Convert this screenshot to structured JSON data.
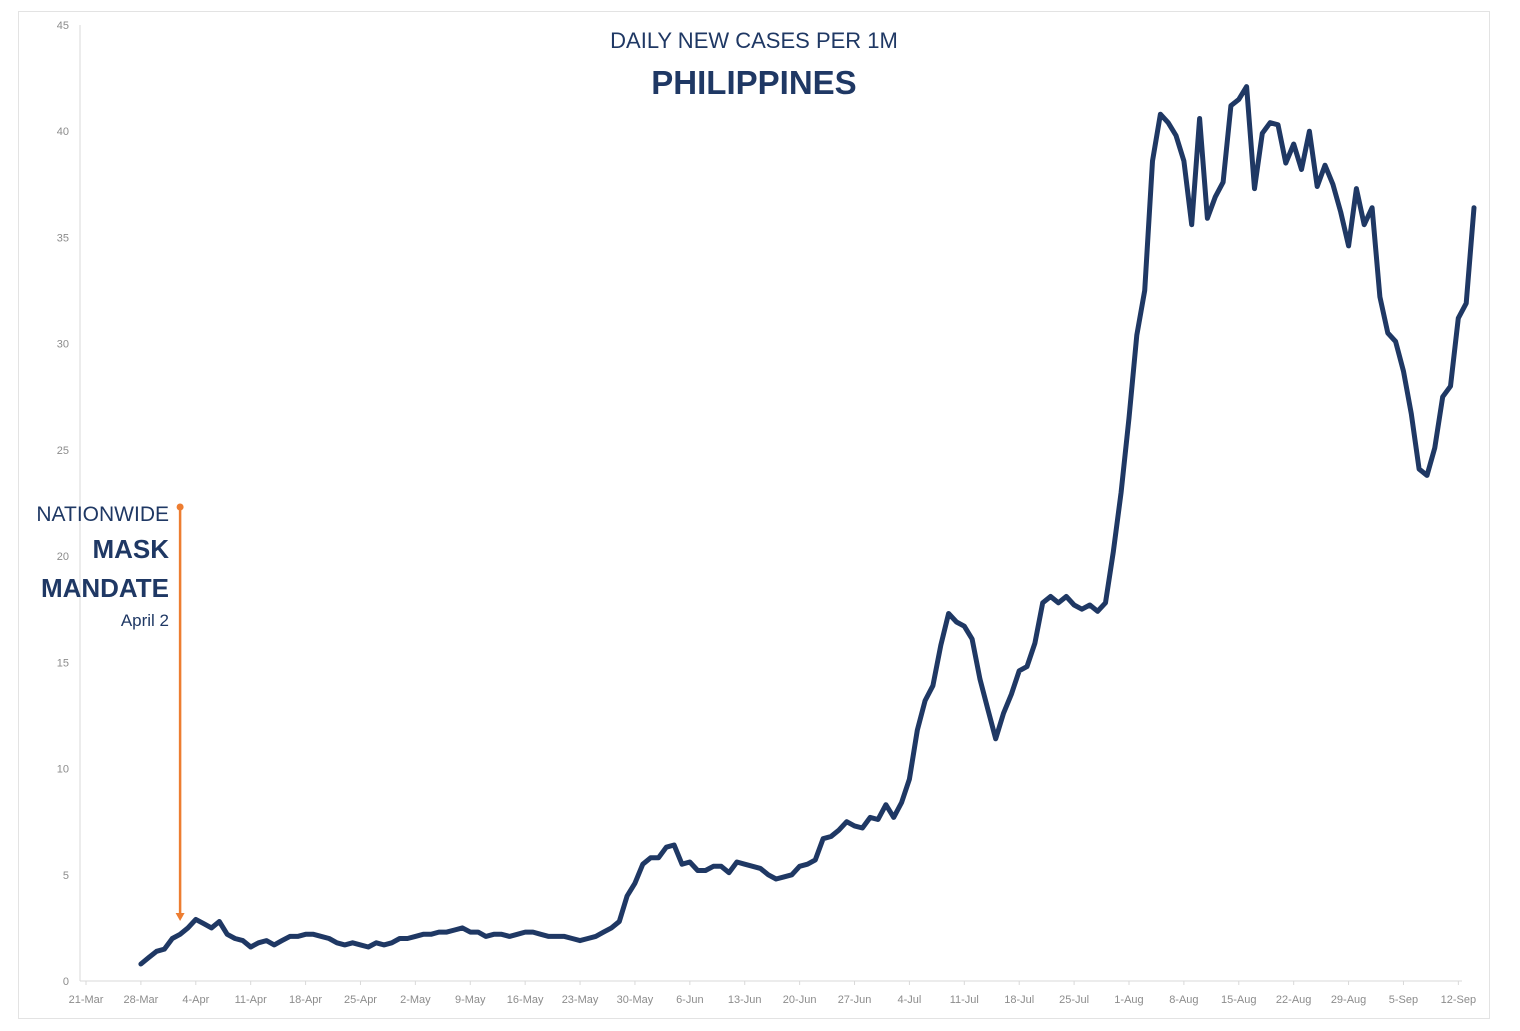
{
  "chart_data": {
    "type": "line",
    "title": "DAILY NEW CASES PER 1M",
    "subtitle": "PHILIPPINES",
    "xlabel": "",
    "ylabel": "",
    "ylim": [
      0,
      45
    ],
    "yticks": [
      0,
      5,
      10,
      15,
      20,
      25,
      30,
      35,
      40,
      45
    ],
    "x_start": "2020-03-21",
    "xtick_labels": [
      "21-Mar",
      "28-Mar",
      "4-Apr",
      "11-Apr",
      "18-Apr",
      "25-Apr",
      "2-May",
      "9-May",
      "16-May",
      "23-May",
      "30-May",
      "6-Jun",
      "13-Jun",
      "20-Jun",
      "27-Jun",
      "4-Jul",
      "11-Jul",
      "18-Jul",
      "25-Jul",
      "1-Aug",
      "8-Aug",
      "15-Aug",
      "22-Aug",
      "29-Aug",
      "5-Sep",
      "12-Sep"
    ],
    "grid": false,
    "line_color": "#1f3864",
    "series": [
      {
        "name": "",
        "x": [
          "28-Mar",
          "29-Mar",
          "30-Mar",
          "31-Mar",
          "1-Apr",
          "2-Apr",
          "3-Apr",
          "4-Apr",
          "5-Apr",
          "6-Apr",
          "7-Apr",
          "8-Apr",
          "9-Apr",
          "10-Apr",
          "11-Apr",
          "12-Apr",
          "13-Apr",
          "14-Apr",
          "15-Apr",
          "16-Apr",
          "17-Apr",
          "18-Apr",
          "19-Apr",
          "20-Apr",
          "21-Apr",
          "22-Apr",
          "23-Apr",
          "24-Apr",
          "25-Apr",
          "26-Apr",
          "27-Apr",
          "28-Apr",
          "29-Apr",
          "30-Apr",
          "1-May",
          "2-May",
          "3-May",
          "4-May",
          "5-May",
          "6-May",
          "7-May",
          "8-May",
          "9-May",
          "10-May",
          "11-May",
          "12-May",
          "13-May",
          "14-May",
          "15-May",
          "16-May",
          "17-May",
          "18-May",
          "19-May",
          "20-May",
          "21-May",
          "22-May",
          "23-May",
          "24-May",
          "25-May",
          "26-May",
          "27-May",
          "28-May",
          "29-May",
          "30-May",
          "31-May",
          "1-Jun",
          "2-Jun",
          "3-Jun",
          "4-Jun",
          "5-Jun",
          "6-Jun",
          "7-Jun",
          "8-Jun",
          "9-Jun",
          "10-Jun",
          "11-Jun",
          "12-Jun",
          "13-Jun",
          "14-Jun",
          "15-Jun",
          "16-Jun",
          "17-Jun",
          "18-Jun",
          "19-Jun",
          "20-Jun",
          "21-Jun",
          "22-Jun",
          "23-Jun",
          "24-Jun",
          "25-Jun",
          "26-Jun",
          "27-Jun",
          "28-Jun",
          "29-Jun",
          "30-Jun",
          "1-Jul",
          "2-Jul",
          "3-Jul",
          "4-Jul",
          "5-Jul",
          "6-Jul",
          "7-Jul",
          "8-Jul",
          "9-Jul",
          "10-Jul",
          "11-Jul",
          "12-Jul",
          "13-Jul",
          "14-Jul",
          "15-Jul",
          "16-Jul",
          "17-Jul",
          "18-Jul",
          "19-Jul",
          "20-Jul",
          "21-Jul",
          "22-Jul",
          "23-Jul",
          "24-Jul",
          "25-Jul",
          "26-Jul",
          "27-Jul",
          "28-Jul",
          "29-Jul",
          "30-Jul",
          "31-Jul",
          "1-Aug",
          "2-Aug",
          "3-Aug",
          "4-Aug",
          "5-Aug",
          "6-Aug",
          "7-Aug",
          "8-Aug",
          "9-Aug",
          "10-Aug",
          "11-Aug",
          "12-Aug",
          "13-Aug",
          "14-Aug",
          "15-Aug",
          "16-Aug",
          "17-Aug",
          "18-Aug",
          "19-Aug",
          "20-Aug",
          "21-Aug",
          "22-Aug",
          "23-Aug",
          "24-Aug",
          "25-Aug",
          "26-Aug",
          "27-Aug",
          "28-Aug",
          "29-Aug",
          "30-Aug",
          "31-Aug",
          "1-Sep",
          "2-Sep",
          "3-Sep",
          "4-Sep",
          "5-Sep",
          "6-Sep",
          "7-Sep",
          "8-Sep",
          "9-Sep",
          "10-Sep",
          "11-Sep",
          "12-Sep",
          "13-Sep",
          "14-Sep"
        ],
        "values": [
          0.8,
          1.1,
          1.4,
          1.5,
          2.0,
          2.2,
          2.5,
          2.9,
          2.7,
          2.5,
          2.8,
          2.2,
          2.0,
          1.9,
          1.6,
          1.8,
          1.9,
          1.7,
          1.9,
          2.1,
          2.1,
          2.2,
          2.2,
          2.1,
          2.0,
          1.8,
          1.7,
          1.8,
          1.7,
          1.6,
          1.8,
          1.7,
          1.8,
          2.0,
          2.0,
          2.1,
          2.2,
          2.2,
          2.3,
          2.3,
          2.4,
          2.5,
          2.3,
          2.3,
          2.1,
          2.2,
          2.2,
          2.1,
          2.2,
          2.3,
          2.3,
          2.2,
          2.1,
          2.1,
          2.1,
          2.0,
          1.9,
          2.0,
          2.1,
          2.3,
          2.5,
          2.8,
          4.0,
          4.6,
          5.5,
          5.8,
          5.8,
          6.3,
          6.4,
          5.5,
          5.6,
          5.2,
          5.2,
          5.4,
          5.4,
          5.1,
          5.6,
          5.5,
          5.4,
          5.3,
          5.0,
          4.8,
          4.9,
          5.0,
          5.4,
          5.5,
          5.7,
          6.7,
          6.8,
          7.1,
          7.5,
          7.3,
          7.2,
          7.7,
          7.6,
          8.3,
          7.7,
          8.4,
          9.5,
          11.8,
          13.2,
          13.9,
          15.8,
          17.3,
          16.9,
          16.7,
          16.1,
          14.2,
          12.8,
          11.4,
          12.6,
          13.5,
          14.6,
          14.8,
          15.9,
          17.8,
          18.1,
          17.8,
          18.1,
          17.7,
          17.5,
          17.7,
          17.4,
          17.8,
          20.2,
          23.0,
          26.5,
          30.4,
          32.5,
          38.6,
          40.8,
          40.4,
          39.8,
          38.6,
          35.6,
          40.6,
          35.9,
          36.9,
          37.6,
          41.2,
          41.5,
          42.1,
          37.3,
          39.9,
          40.4,
          40.3,
          38.5,
          39.4,
          38.2,
          40.0,
          37.4,
          38.4,
          37.5,
          36.2,
          34.6,
          37.3,
          35.6,
          36.4,
          32.2,
          30.5,
          30.1,
          28.7,
          26.7,
          24.1,
          23.8,
          25.1,
          27.5,
          28.0,
          31.2,
          31.9,
          36.4
        ]
      }
    ],
    "annotation": {
      "line1": "NATIONWIDE",
      "line2": "MASK",
      "line3": "MANDATE",
      "line4": "April 2",
      "date": "2-Apr",
      "color": "#ed7d31"
    }
  }
}
